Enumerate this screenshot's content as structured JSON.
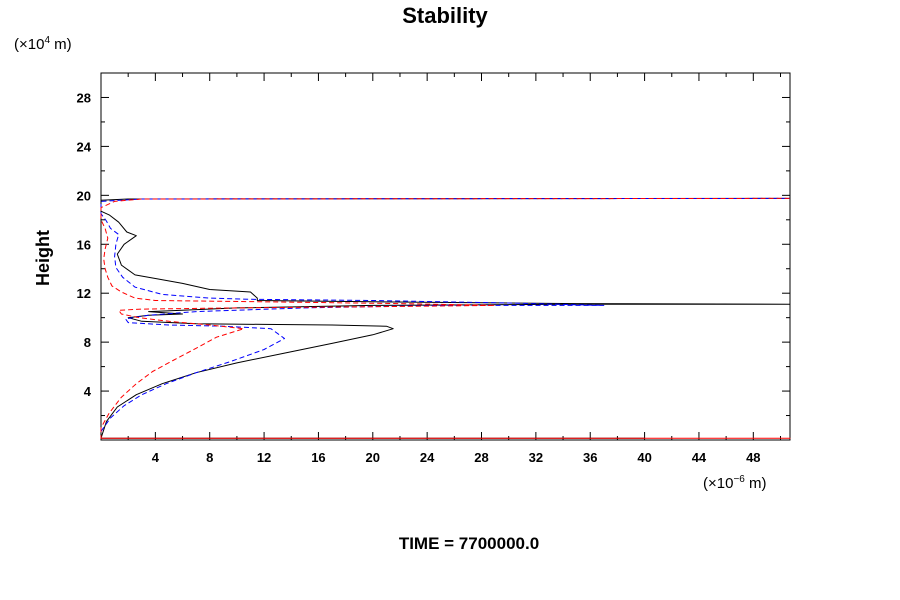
{
  "chart_data": {
    "type": "line",
    "title": "Stability",
    "ylabel": "Height",
    "xlabel": "",
    "y_unit": {
      "prefix": "(×10",
      "exp": "4",
      "suffix": " m)"
    },
    "x_unit": {
      "prefix": "(×10",
      "exp": "−6",
      "suffix": " m)"
    },
    "xlim": [
      0,
      50.7
    ],
    "ylim": [
      0,
      30
    ],
    "x_ticks": [
      4,
      8,
      12,
      16,
      20,
      24,
      28,
      32,
      36,
      40,
      44,
      48
    ],
    "y_ticks": [
      4,
      8,
      12,
      16,
      20,
      24,
      28
    ],
    "grid": false,
    "series": [
      {
        "color": "#000000",
        "dash": "solid",
        "points": [
          [
            0,
            0.15
          ],
          [
            40,
            0.15
          ],
          [
            0,
            0.15
          ],
          [
            0.4,
            1.5
          ],
          [
            1.2,
            2.7
          ],
          [
            2.6,
            3.7
          ],
          [
            4.5,
            4.6
          ],
          [
            7,
            5.5
          ],
          [
            10,
            6.3
          ],
          [
            13.5,
            7.1
          ],
          [
            17,
            7.9
          ],
          [
            20,
            8.6
          ],
          [
            21.5,
            9.1
          ],
          [
            21,
            9.3
          ],
          [
            17,
            9.4
          ],
          [
            12,
            9.45
          ],
          [
            7,
            9.5
          ],
          [
            3,
            9.7
          ],
          [
            2,
            10.0
          ],
          [
            3.5,
            10.2
          ],
          [
            6,
            10.3
          ],
          [
            3.5,
            10.5
          ],
          [
            6,
            10.6
          ],
          [
            10,
            10.8
          ],
          [
            20,
            11.0
          ],
          [
            35,
            11.1
          ],
          [
            50.7,
            11.1
          ],
          [
            35,
            11.15
          ],
          [
            20,
            11.3
          ],
          [
            11.5,
            11.4
          ],
          [
            11.5,
            11.6
          ],
          [
            11,
            12.1
          ],
          [
            8,
            12.3
          ],
          [
            6,
            12.8
          ],
          [
            4,
            13.2
          ],
          [
            2.5,
            13.5
          ],
          [
            1.5,
            14.3
          ],
          [
            1.2,
            15.2
          ],
          [
            1.7,
            16.0
          ],
          [
            2.6,
            16.7
          ],
          [
            1.9,
            17.0
          ],
          [
            1.3,
            17.8
          ],
          [
            0.6,
            18.4
          ],
          [
            0,
            18.7
          ],
          [
            0,
            19.6
          ],
          [
            2,
            19.7
          ],
          [
            50.7,
            19.75
          ]
        ]
      },
      {
        "color": "#0000ff",
        "dash": "dashed",
        "points": [
          [
            0,
            0.7
          ],
          [
            0.7,
            1.8
          ],
          [
            1.7,
            2.8
          ],
          [
            3,
            3.7
          ],
          [
            4.8,
            4.6
          ],
          [
            7,
            5.5
          ],
          [
            9.5,
            6.4
          ],
          [
            12,
            7.4
          ],
          [
            13.5,
            8.3
          ],
          [
            12.5,
            9.1
          ],
          [
            9,
            9.3
          ],
          [
            5,
            9.4
          ],
          [
            2,
            9.6
          ],
          [
            1.8,
            9.9
          ],
          [
            3.5,
            10.2
          ],
          [
            7,
            10.5
          ],
          [
            15,
            10.8
          ],
          [
            25,
            11.0
          ],
          [
            37,
            11.0
          ],
          [
            30,
            11.2
          ],
          [
            20,
            11.4
          ],
          [
            11,
            11.5
          ],
          [
            8,
            11.6
          ],
          [
            4.5,
            11.9
          ],
          [
            2.5,
            12.5
          ],
          [
            1.6,
            13.3
          ],
          [
            1.1,
            14.1
          ],
          [
            1.0,
            15.0
          ],
          [
            1.1,
            16.0
          ],
          [
            1.3,
            16.8
          ],
          [
            0.7,
            17.3
          ],
          [
            0.4,
            17.9
          ],
          [
            0,
            18.5
          ],
          [
            0,
            19.5
          ],
          [
            3,
            19.7
          ],
          [
            50.7,
            19.75
          ]
        ]
      },
      {
        "color": "#ff0000",
        "dash": "dashed",
        "points": [
          [
            0,
            0.15
          ],
          [
            50.7,
            0.15
          ],
          [
            0,
            0.15
          ],
          [
            0,
            1.0
          ],
          [
            0.6,
            2.2
          ],
          [
            1.5,
            3.5
          ],
          [
            2.6,
            4.6
          ],
          [
            3.8,
            5.6
          ],
          [
            5.3,
            6.5
          ],
          [
            7,
            7.5
          ],
          [
            8.5,
            8.4
          ],
          [
            10.5,
            9.1
          ],
          [
            8,
            9.4
          ],
          [
            5,
            9.7
          ],
          [
            2.8,
            10.0
          ],
          [
            1.5,
            10.3
          ],
          [
            1.3,
            10.6
          ],
          [
            3,
            10.7
          ],
          [
            10,
            10.8
          ],
          [
            20,
            10.9
          ],
          [
            29,
            11.0
          ],
          [
            22,
            11.15
          ],
          [
            12,
            11.3
          ],
          [
            4,
            11.4
          ],
          [
            2.5,
            11.6
          ],
          [
            1.5,
            12.1
          ],
          [
            0.8,
            12.6
          ],
          [
            0.5,
            13.3
          ],
          [
            0.3,
            14.0
          ],
          [
            0.2,
            14.8
          ],
          [
            0.3,
            15.6
          ],
          [
            0.5,
            16.5
          ],
          [
            0.3,
            17.3
          ],
          [
            0,
            18.0
          ],
          [
            0,
            19.0
          ],
          [
            1,
            19.5
          ],
          [
            3,
            19.7
          ],
          [
            50.7,
            19.75
          ]
        ]
      }
    ]
  },
  "footer": {
    "time_label": "TIME = 7700000.0"
  }
}
